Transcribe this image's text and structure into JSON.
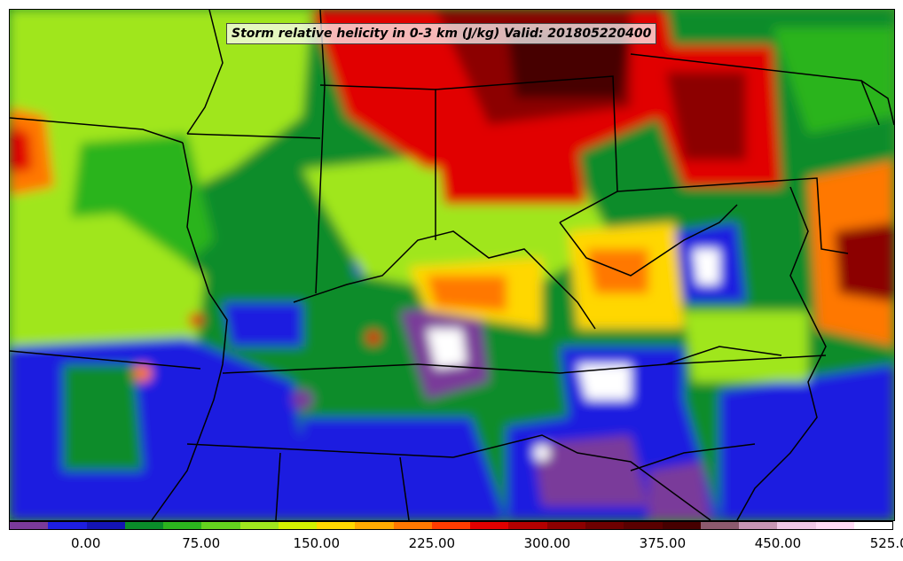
{
  "title": "Storm relative helicity in 0-3 km (J/kg) Valid: 201805220400",
  "colorbar": {
    "colors": [
      "#7a3a9a",
      "#1e1ee0",
      "#1414b4",
      "#0a8c2a",
      "#2cb41e",
      "#64d21e",
      "#a0e61e",
      "#d2f000",
      "#ffd700",
      "#ffaa00",
      "#ff7800",
      "#ff3c00",
      "#e10000",
      "#b40000",
      "#8c0000",
      "#6e0000",
      "#5a0000",
      "#460000",
      "#8c5a6e",
      "#c896b4",
      "#f0c8e6",
      "#ffdcf5",
      "#ffffff"
    ],
    "tick_labels": [
      "0.00",
      "75.00",
      "150.00",
      "225.00",
      "300.00",
      "375.00",
      "450.00",
      "525.00"
    ]
  },
  "palette": {
    "purple": "#7a3a9a",
    "blue": "#1e1ee0",
    "dark_green": "#0a8c2a",
    "green": "#2cb41e",
    "lime": "#a0e61e",
    "yellow": "#ffd700",
    "orange": "#ff7800",
    "red": "#e10000",
    "dark_red": "#8c0000",
    "maroon": "#460000",
    "white": "#ffffff"
  }
}
